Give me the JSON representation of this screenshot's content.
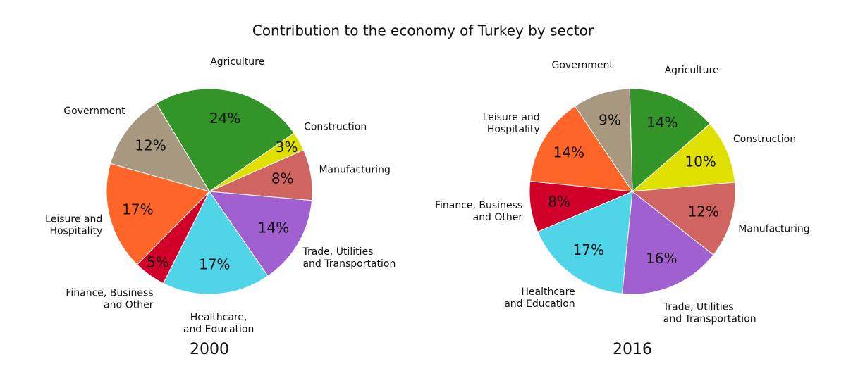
{
  "title": "Contribution to the economy of Turkey by sector",
  "chart_data": [
    {
      "type": "pie",
      "title": "2000",
      "categories": [
        "Agriculture",
        "Construction",
        "Manufacturing",
        "Trade, Utilities\nand Transportation",
        "Healthcare,\nand Education",
        "Finance, Business\nand Other",
        "Leisure and\nHospitality",
        "Government"
      ],
      "values": [
        24,
        3,
        8,
        14,
        17,
        5,
        17,
        12
      ],
      "value_labels": [
        "24%",
        "3%",
        "8%",
        "14%",
        "17%",
        "5%",
        "17%",
        "12%"
      ],
      "colors": [
        "#339428",
        "#e0e000",
        "#d06460",
        "#a060d0",
        "#50d4e8",
        "#d0002a",
        "#ff6428",
        "#a89880"
      ]
    },
    {
      "type": "pie",
      "title": "2016",
      "categories": [
        "Agriculture",
        "Construction",
        "Manufacturing",
        "Trade, Utilities\nand Transportation",
        "Healthcare\nand Education",
        "Finance, Business\nand Other",
        "Leisure and\nHospitality",
        "Government"
      ],
      "values": [
        14,
        10,
        12,
        16,
        17,
        8,
        14,
        9
      ],
      "value_labels": [
        "14%",
        "10%",
        "12%",
        "16%",
        "17%",
        "8%",
        "14%",
        "9%"
      ],
      "colors": [
        "#339428",
        "#e0e000",
        "#d06460",
        "#a060d0",
        "#50d4e8",
        "#d0002a",
        "#ff6428",
        "#a89880"
      ]
    }
  ]
}
